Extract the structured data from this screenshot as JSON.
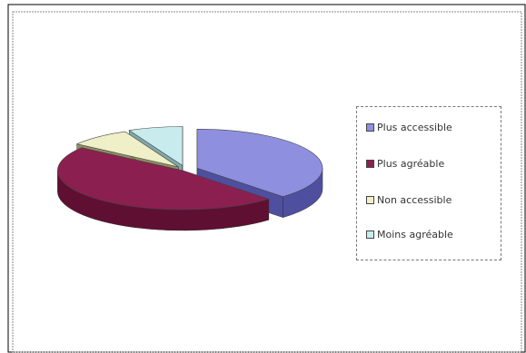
{
  "chart_data": {
    "type": "pie",
    "three_d": true,
    "exploded": true,
    "title": "",
    "categories": [
      "Plus accessible",
      "Plus agréable",
      "Non accessible",
      "Moins agréable"
    ],
    "values": [
      38,
      47,
      8,
      7
    ],
    "colors": [
      "#8f8fe0",
      "#8b1f50",
      "#efefc8",
      "#c8ecee"
    ],
    "side_colors": [
      "#4f4fa0",
      "#5f0f32",
      "#8f8f60",
      "#80a8aa"
    ],
    "legend_position": "right",
    "legend_entries": [
      "Plus accessible",
      "Plus agréable",
      "Non accessible",
      "Moins agréable"
    ]
  }
}
